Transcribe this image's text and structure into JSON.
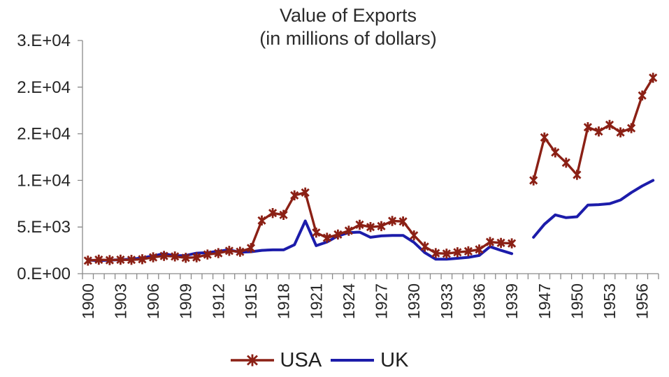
{
  "title": {
    "line1": "Value of Exports",
    "line2": "(in millions of dollars)"
  },
  "legend": {
    "items": [
      {
        "label": "USA",
        "marker": "asterisk-line"
      },
      {
        "label": "UK",
        "marker": "line"
      }
    ],
    "position": "bottom-center"
  },
  "colors": {
    "usa": "#8B2015",
    "uk": "#1C1CAA",
    "axis": "#8A8A8A",
    "text": "#262626",
    "background": "#FFFFFF"
  },
  "y_axis": {
    "tick_labels": [
      "0.E+00",
      "5.E+03",
      "1.E+04",
      "2.E+04",
      "2.E+04",
      "3.E+04"
    ],
    "tick_values": [
      0,
      5000,
      10000,
      15000,
      20000,
      25000
    ]
  },
  "x_axis": {
    "label_every": 3,
    "labels_shown": [
      "1900",
      "1903",
      "1906",
      "1909",
      "1912",
      "1915",
      "1918",
      "1921",
      "1924",
      "1927",
      "1930",
      "1933",
      "1936",
      "1939",
      "1947",
      "1950",
      "1953",
      "1956"
    ],
    "label_rotation_deg": -90
  },
  "chart_data": {
    "type": "line",
    "title": "Value of Exports",
    "subtitle": "(in millions of dollars)",
    "xlabel": "",
    "ylabel": "",
    "ylim": [
      0,
      25000
    ],
    "y_tick_interval": 5000,
    "y_tick_labels": [
      "0.E+00",
      "5.E+03",
      "1.E+04",
      "2.E+04",
      "2.E+04",
      "3.E+04"
    ],
    "grid": false,
    "legend_position": "bottom",
    "note": "No data plotted for WWII years (gap between 1939 and 1946); values estimated from pixel positions, in millions of dollars.",
    "categories": [
      "1900",
      "1901",
      "1902",
      "1903",
      "1904",
      "1905",
      "1906",
      "1907",
      "1908",
      "1909",
      "1910",
      "1911",
      "1912",
      "1913",
      "1914",
      "1915",
      "1916",
      "1917",
      "1918",
      "1919",
      "1920",
      "1921",
      "1922",
      "1923",
      "1924",
      "1925",
      "1926",
      "1927",
      "1928",
      "1929",
      "1930",
      "1931",
      "1932",
      "1933",
      "1934",
      "1935",
      "1936",
      "1937",
      "1938",
      "1939",
      "1945",
      "1946",
      "1947",
      "1948",
      "1949",
      "1950",
      "1951",
      "1952",
      "1953",
      "1954",
      "1955",
      "1956",
      "1957"
    ],
    "series": [
      {
        "name": "USA",
        "color": "#8B2015",
        "marker": "asterisk",
        "line_width": 3.4,
        "values": [
          1400,
          1500,
          1450,
          1500,
          1480,
          1550,
          1750,
          1900,
          1850,
          1700,
          1750,
          2050,
          2200,
          2450,
          2350,
          2750,
          5700,
          6500,
          6300,
          8400,
          8700,
          4400,
          3850,
          4200,
          4600,
          5250,
          5000,
          5100,
          5650,
          5600,
          4100,
          2900,
          2200,
          2150,
          2300,
          2400,
          2600,
          3400,
          3300,
          3250,
          null,
          10000,
          14600,
          13000,
          11900,
          10600,
          15700,
          15250,
          15950,
          15150,
          15600,
          19100,
          21000
        ]
      },
      {
        "name": "UK",
        "color": "#1C1CAA",
        "marker": "none",
        "line_width": 4,
        "values": [
          1450,
          1400,
          1450,
          1500,
          1550,
          1700,
          1900,
          2150,
          1900,
          1950,
          2200,
          2250,
          2400,
          2550,
          2300,
          2350,
          2500,
          2550,
          2550,
          3100,
          5650,
          3000,
          3400,
          4050,
          4400,
          4450,
          3900,
          4050,
          4100,
          4100,
          3350,
          2250,
          1550,
          1550,
          1650,
          1750,
          1950,
          2900,
          2500,
          2150,
          null,
          3900,
          5300,
          6300,
          6000,
          6100,
          7350,
          7400,
          7500,
          7900,
          8700,
          9400,
          10000
        ]
      }
    ]
  }
}
